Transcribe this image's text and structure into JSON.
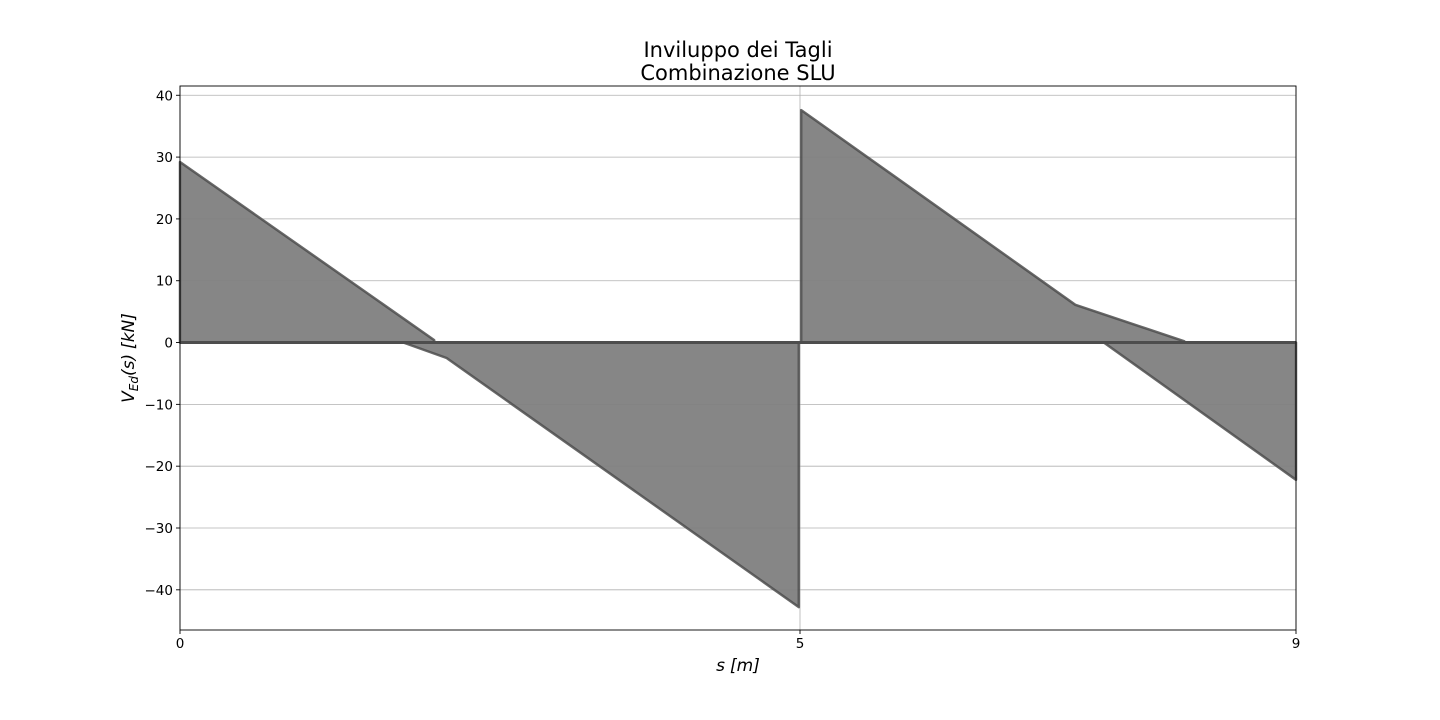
{
  "chart_data": {
    "type": "area",
    "title_line1": "Inviluppo dei Tagli",
    "title_line2": "Combinazione SLU",
    "xlabel_main": "s",
    "xlabel_unit": "[m]",
    "ylabel_main": "V",
    "ylabel_sub": "Ed",
    "ylabel_arg": "(s)",
    "ylabel_unit": "[kN]",
    "xlim": [
      0,
      9
    ],
    "ylim": [
      -46.5,
      41.5
    ],
    "x_ticks": [
      {
        "value": 0,
        "label": "0"
      },
      {
        "value": 5,
        "label": "5"
      },
      {
        "value": 9,
        "label": "9"
      }
    ],
    "y_ticks": [
      {
        "value": 40,
        "label": "40"
      },
      {
        "value": 30,
        "label": "30"
      },
      {
        "value": 20,
        "label": "20"
      },
      {
        "value": 10,
        "label": "10"
      },
      {
        "value": 0,
        "label": "0"
      },
      {
        "value": -10,
        "label": "−10"
      },
      {
        "value": -20,
        "label": "−20"
      },
      {
        "value": -30,
        "label": "−30"
      },
      {
        "value": -40,
        "label": "−40"
      }
    ],
    "grid": true,
    "color": "#808080",
    "edge_color": "#4d4d4d",
    "regions": [
      {
        "name": "positive-span-1",
        "points": [
          [
            0,
            0
          ],
          [
            0,
            29.2
          ],
          [
            2.05,
            0.4
          ],
          [
            2.05,
            0
          ]
        ]
      },
      {
        "name": "negative-span-1",
        "points": [
          [
            1.8,
            0
          ],
          [
            2.15,
            -2.5
          ],
          [
            4.99,
            -42.8
          ],
          [
            4.99,
            0
          ]
        ]
      },
      {
        "name": "positive-span-2",
        "points": [
          [
            5.01,
            0
          ],
          [
            5.01,
            37.6
          ],
          [
            7.22,
            6.1
          ],
          [
            8.1,
            0.2
          ],
          [
            8.1,
            0
          ]
        ]
      },
      {
        "name": "negative-span-2",
        "points": [
          [
            7.45,
            0
          ],
          [
            9,
            -22.2
          ],
          [
            9,
            0
          ]
        ]
      }
    ]
  }
}
